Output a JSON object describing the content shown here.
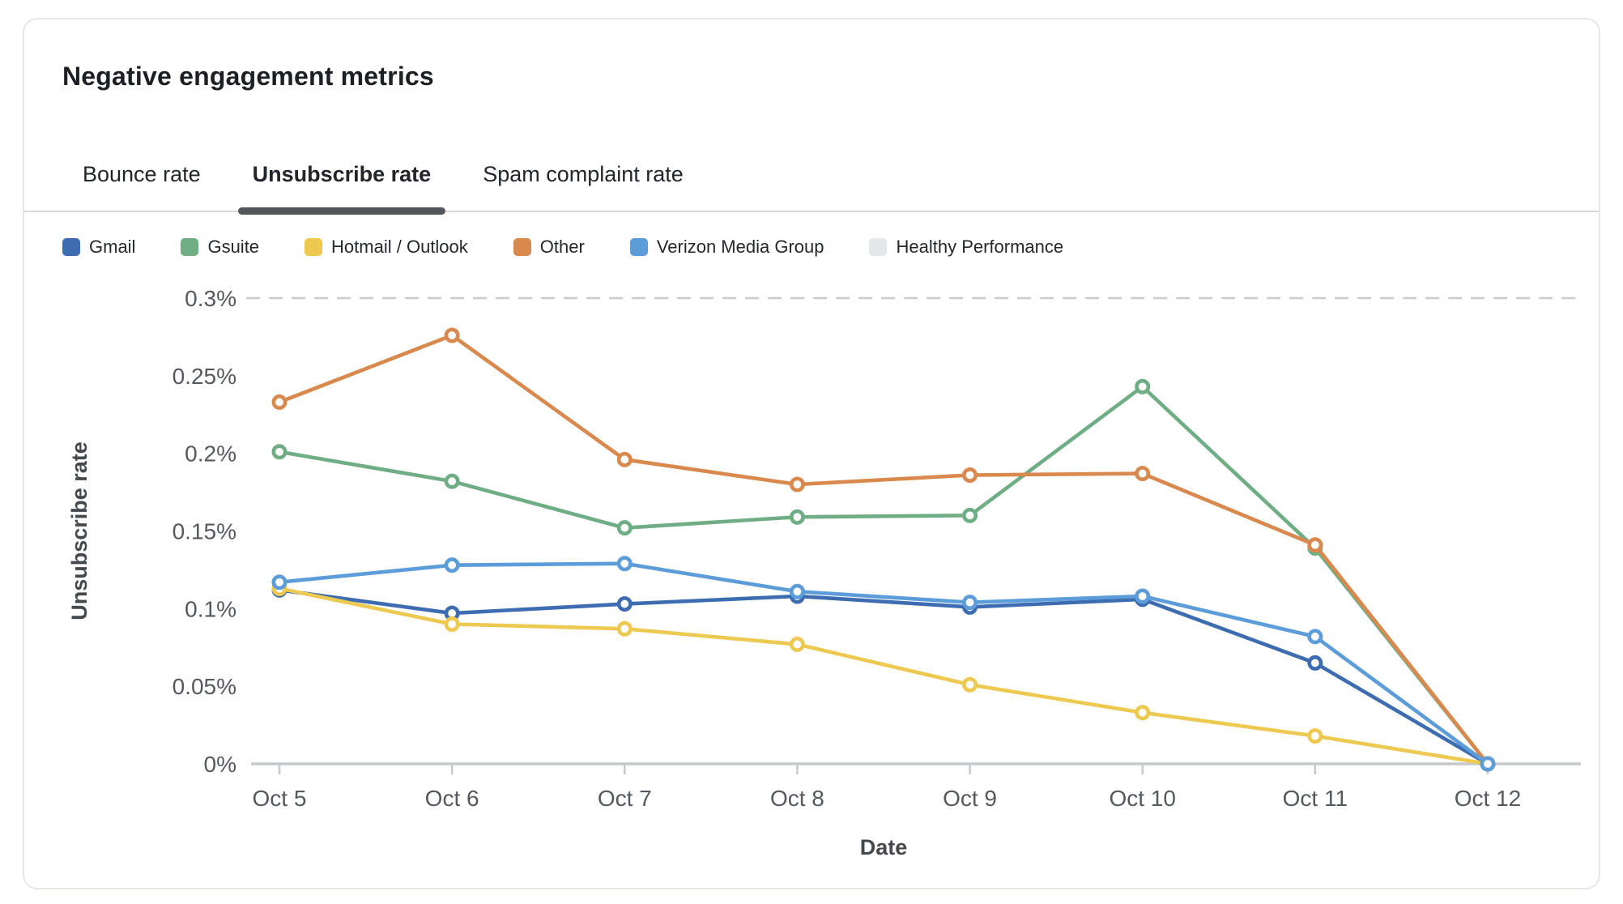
{
  "card": {
    "title": "Negative engagement metrics"
  },
  "tabs": [
    {
      "label": "Bounce rate",
      "active": false
    },
    {
      "label": "Unsubscribe rate",
      "active": true
    },
    {
      "label": "Spam complaint rate",
      "active": false
    }
  ],
  "legend": [
    {
      "label": "Gmail",
      "color": "#3d6db0"
    },
    {
      "label": "Gsuite",
      "color": "#6fae85"
    },
    {
      "label": "Hotmail / Outlook",
      "color": "#edc951"
    },
    {
      "label": "Other",
      "color": "#d9894d"
    },
    {
      "label": "Verizon Media Group",
      "color": "#5b9cd9"
    },
    {
      "label": "Healthy Performance",
      "color": "#e5e8ea"
    }
  ],
  "chart_data": {
    "type": "line",
    "x": [
      "Oct 5",
      "Oct 6",
      "Oct 7",
      "Oct 8",
      "Oct 9",
      "Oct 10",
      "Oct 11",
      "Oct 12"
    ],
    "series": [
      {
        "name": "Gmail",
        "color": "#3d6db0",
        "values": [
          0.112,
          0.097,
          0.103,
          0.108,
          0.101,
          0.106,
          0.065,
          0
        ]
      },
      {
        "name": "Gsuite",
        "color": "#6fae85",
        "values": [
          0.201,
          0.182,
          0.152,
          0.159,
          0.16,
          0.243,
          0.139,
          0
        ]
      },
      {
        "name": "Hotmail / Outlook",
        "color": "#edc951",
        "values": [
          0.113,
          0.09,
          0.087,
          0.077,
          0.051,
          0.033,
          0.018,
          0
        ]
      },
      {
        "name": "Other",
        "color": "#d9894d",
        "values": [
          0.233,
          0.276,
          0.196,
          0.18,
          0.186,
          0.187,
          0.141,
          0
        ]
      },
      {
        "name": "Verizon Media Group",
        "color": "#5b9cd9",
        "values": [
          0.117,
          0.128,
          0.129,
          0.111,
          0.104,
          0.108,
          0.082,
          0
        ]
      }
    ],
    "threshold": {
      "name": "Healthy Performance",
      "value": 0.3,
      "color": "#c7cace"
    },
    "yticks": [
      "0.3%",
      "0.25%",
      "0.2%",
      "0.15%",
      "0.1%",
      "0.05%",
      "0%"
    ],
    "ytick_values": [
      0.3,
      0.25,
      0.2,
      0.15,
      0.1,
      0.05,
      0
    ],
    "ylim": [
      0,
      0.3
    ],
    "ylabel": "Unsubscribe rate",
    "xlabel": "Date",
    "grid": false,
    "legend_position": "top"
  }
}
